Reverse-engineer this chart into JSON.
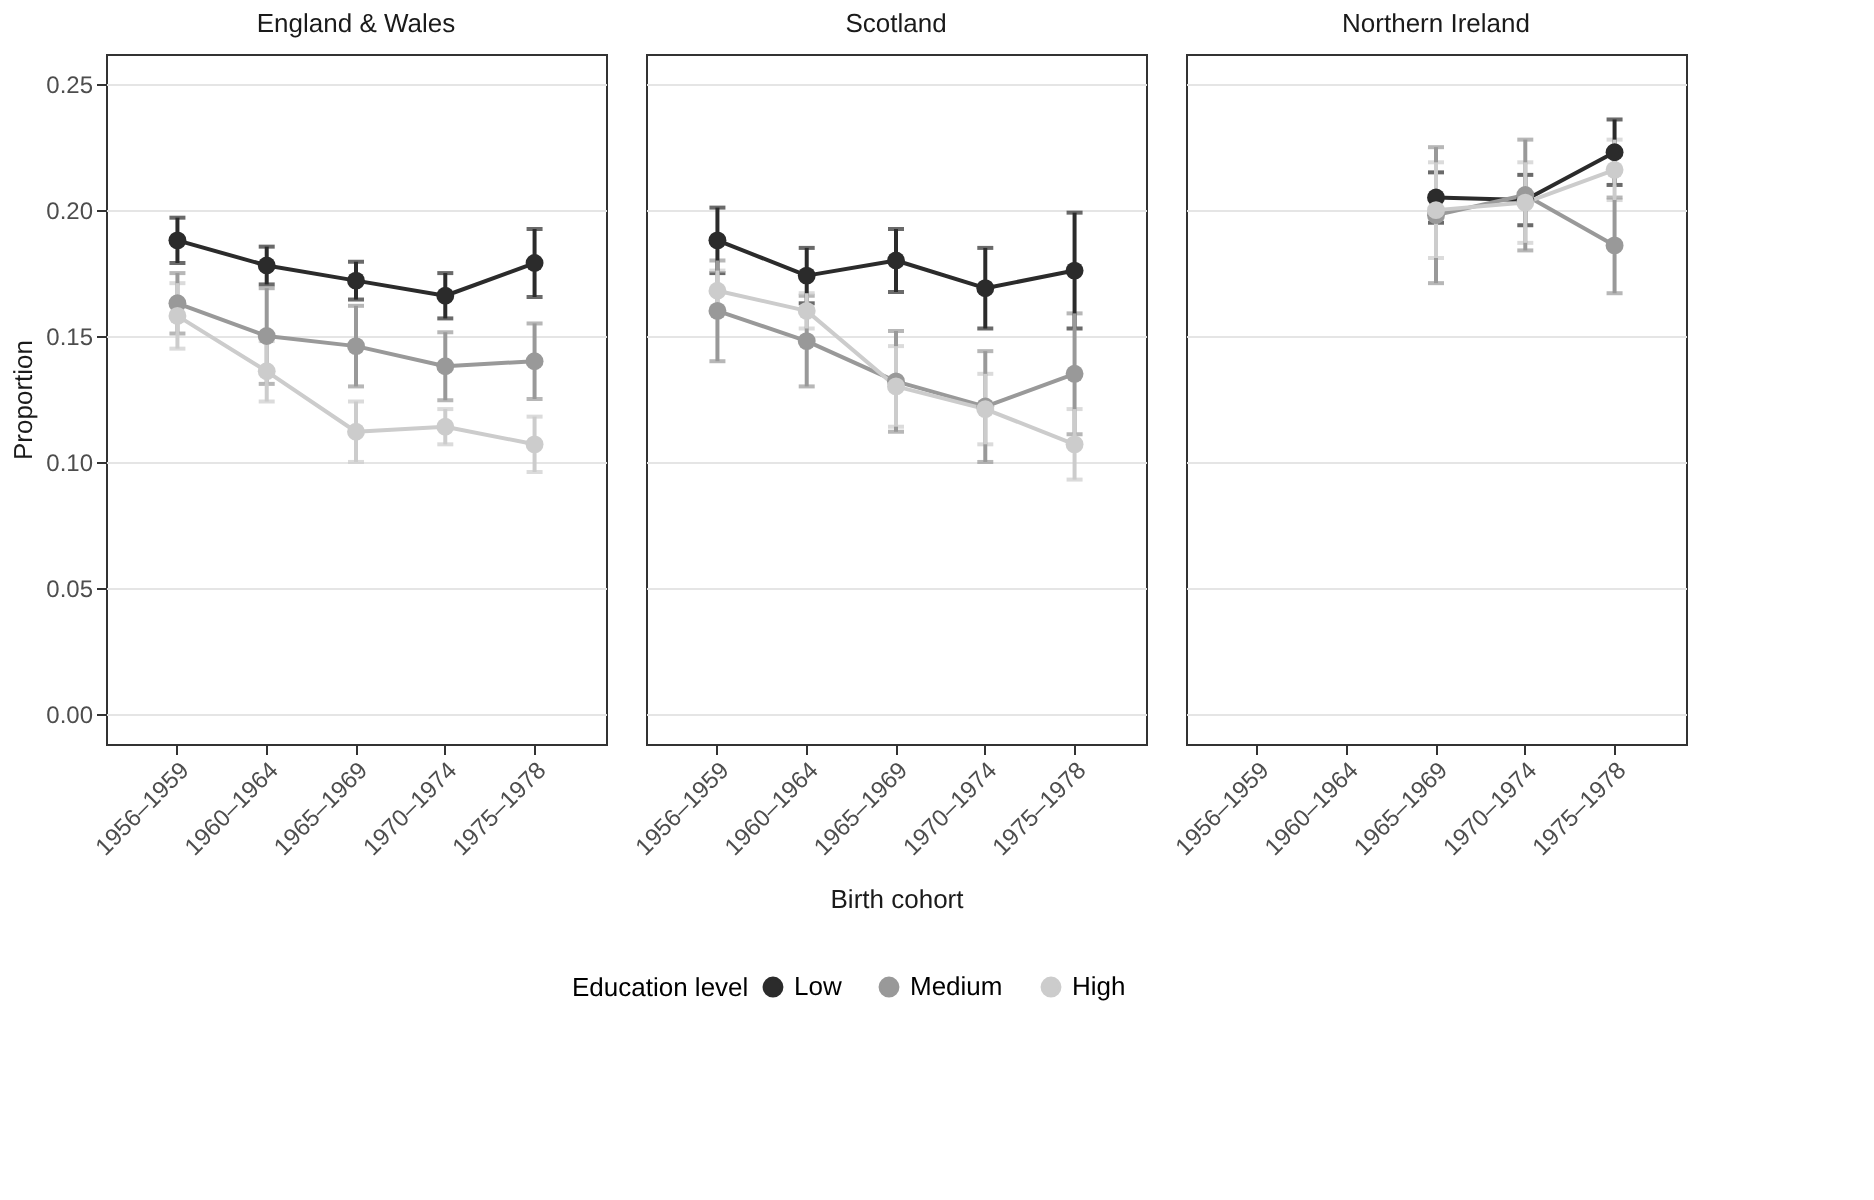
{
  "chart_data": [
    {
      "type": "line",
      "title": "England & Wales",
      "ylabel": "Proportion",
      "categories": [
        "1956–1959",
        "1960–1964",
        "1965–1969",
        "1970–1974",
        "1975–1978"
      ],
      "ylim": [
        -0.012,
        0.262
      ],
      "yticks": [
        {
          "value": 0,
          "label": "0.00"
        },
        0.05,
        {
          "value": 0.1,
          "label": "0.10"
        },
        0.15,
        {
          "value": 0.2,
          "label": "0.20"
        },
        0.25
      ],
      "grid": "y",
      "marker": "circle",
      "legend": "bottom",
      "legend_title": "Education level",
      "series": [
        {
          "name": "Low",
          "color": "#2b2b2b",
          "values": [
            0.188,
            0.178,
            0.172,
            0.166,
            0.179
          ],
          "errors": [
            0.009,
            0.0075,
            0.0075,
            0.009,
            0.0135
          ]
        },
        {
          "name": "Medium",
          "color": "#999999",
          "values": [
            0.163,
            0.15,
            0.146,
            0.138,
            0.14
          ],
          "errors": [
            0.012,
            0.019,
            0.016,
            0.0135,
            0.015
          ]
        },
        {
          "name": "High",
          "color": "#cccccc",
          "values": [
            0.158,
            0.136,
            0.112,
            0.114,
            0.107
          ],
          "errors": [
            0.013,
            0.012,
            0.012,
            0.007,
            0.011
          ]
        }
      ]
    },
    {
      "type": "line",
      "title": "Scotland",
      "xlabel": "Birth cohort",
      "categories": [
        "1956–1959",
        "1960–1964",
        "1965–1969",
        "1970–1974",
        "1975–1978"
      ],
      "ylim": [
        -0.012,
        0.262
      ],
      "yticks": [
        0,
        0.05,
        0.1,
        0.15,
        0.2,
        0.25
      ],
      "grid": "y",
      "marker": "circle",
      "tick_labels": "x",
      "series": [
        {
          "color": "#2b2b2b",
          "values": [
            0.188,
            0.174,
            0.18,
            0.169,
            0.176
          ],
          "errors": [
            0.013,
            0.011,
            0.0125,
            0.016,
            0.023
          ]
        },
        {
          "color": "#999999",
          "values": [
            0.16,
            0.148,
            0.132,
            0.122,
            0.135
          ],
          "errors": [
            0.02,
            0.018,
            0.02,
            0.022,
            0.024
          ]
        },
        {
          "color": "#cccccc",
          "values": [
            0.168,
            0.16,
            0.13,
            0.121,
            0.107
          ],
          "errors": [
            0.008,
            0.007,
            0.016,
            0.014,
            0.014
          ]
        }
      ]
    },
    {
      "type": "line",
      "title": "Northern Ireland",
      "categories": [
        "1956–1959",
        "1960–1964",
        "1965–1969",
        "1970–1974",
        "1975–1978"
      ],
      "ylim": [
        -0.012,
        0.262
      ],
      "yticks": [
        0,
        0.05,
        0.1,
        0.15,
        0.2,
        0.25
      ],
      "grid": "y",
      "marker": "circle",
      "tick_labels": "x",
      "series": [
        {
          "color": "#2b2b2b",
          "values": [
            null,
            null,
            0.205,
            0.204,
            0.223
          ],
          "errors": [
            null,
            null,
            0.01,
            0.01,
            0.013
          ]
        },
        {
          "color": "#999999",
          "values": [
            null,
            null,
            0.198,
            0.206,
            0.186
          ],
          "errors": [
            null,
            null,
            0.027,
            0.022,
            0.019
          ]
        },
        {
          "color": "#cccccc",
          "values": [
            null,
            null,
            0.2,
            0.203,
            0.216
          ],
          "errors": [
            null,
            null,
            0.019,
            0.016,
            0.012
          ]
        }
      ]
    }
  ]
}
